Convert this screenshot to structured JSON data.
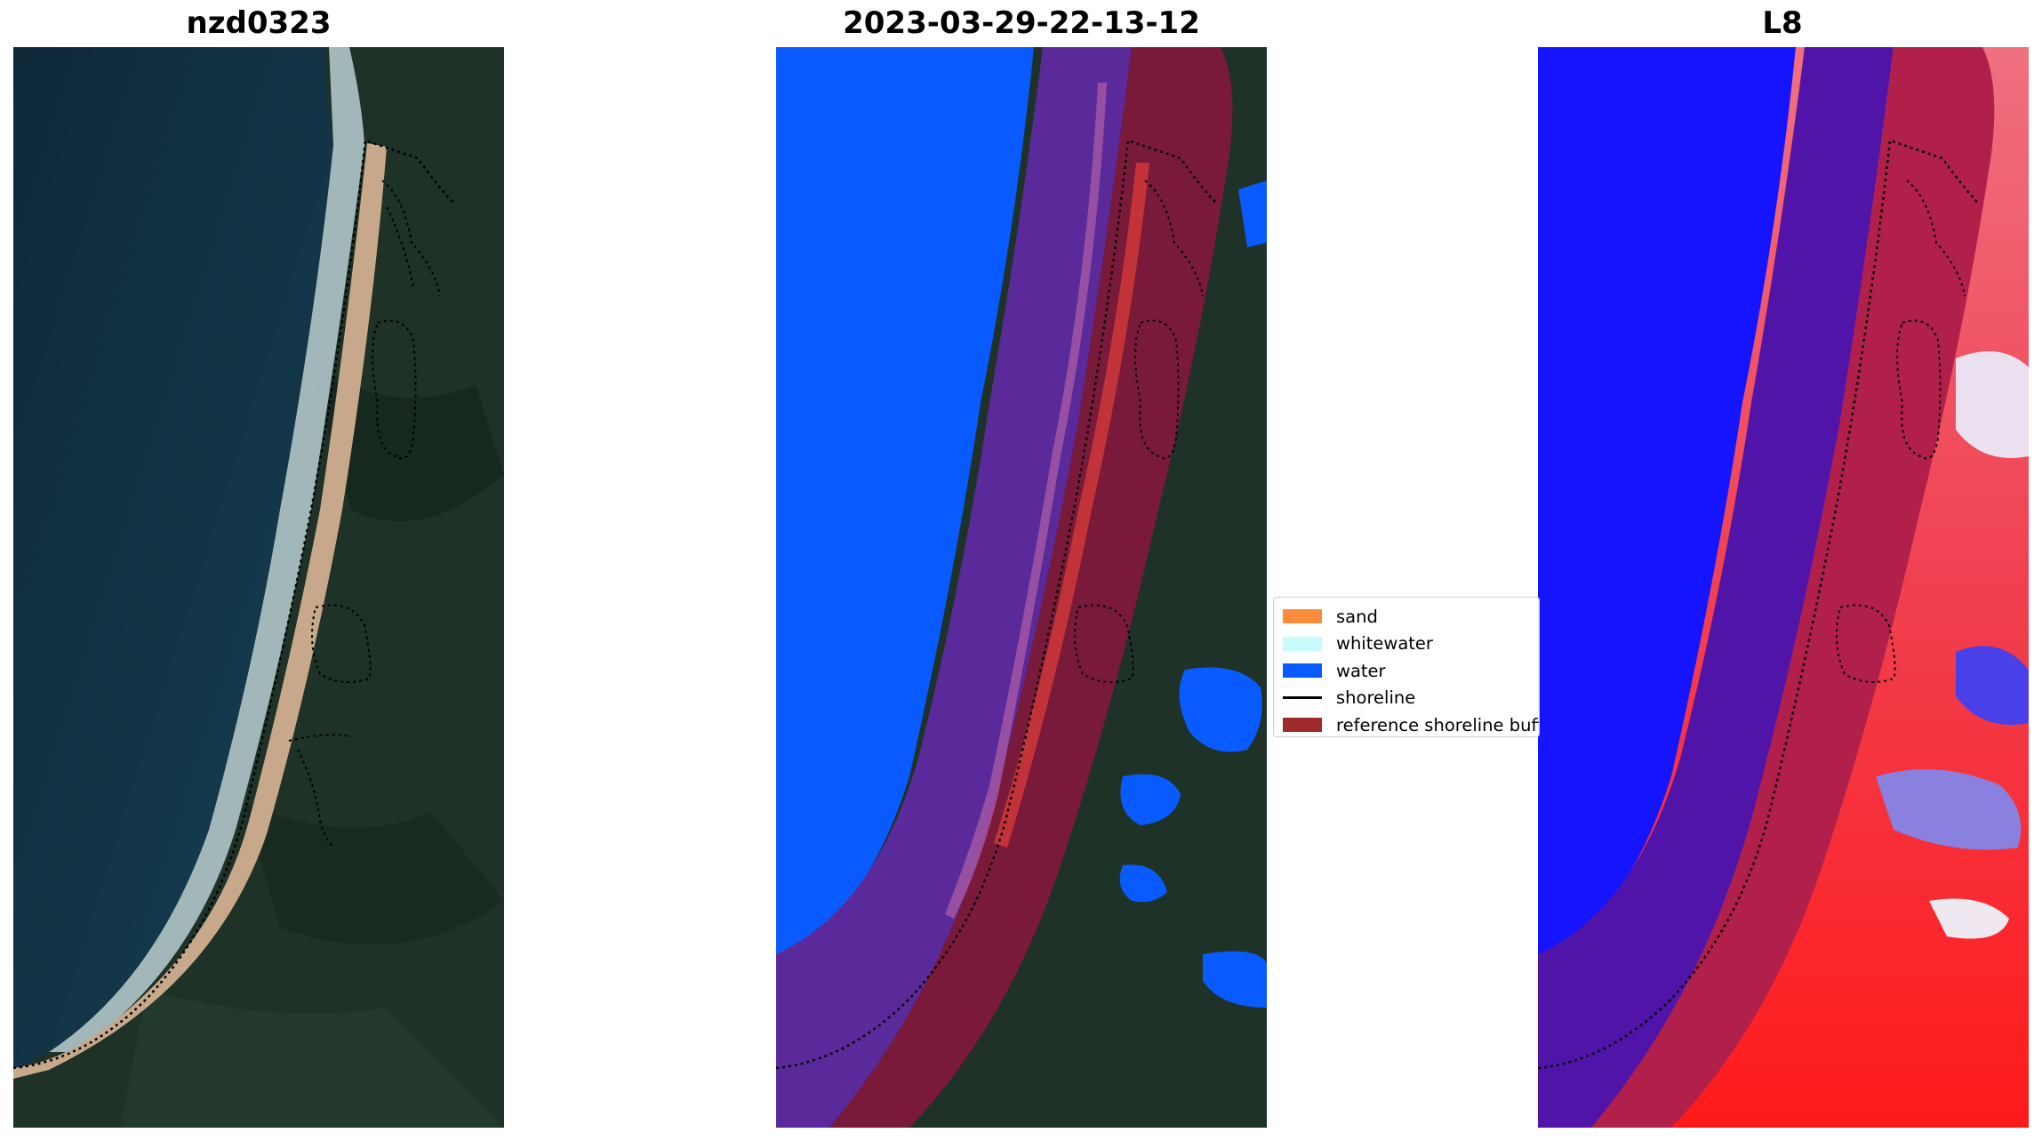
{
  "panels": [
    {
      "title": "nzd0323"
    },
    {
      "title": "2023-03-29-22-13-12"
    },
    {
      "title": "L8"
    }
  ],
  "legend": {
    "items": [
      {
        "label": "sand",
        "color": "#fb8c3c",
        "kind": "patch"
      },
      {
        "label": "whitewater",
        "color": "#c8fbfb",
        "kind": "patch"
      },
      {
        "label": "water",
        "color": "#0a5bff",
        "kind": "patch"
      },
      {
        "label": "shoreline",
        "color": "#000000",
        "kind": "line"
      },
      {
        "label": "reference shoreline buffer",
        "color": "#9e2a2a",
        "kind": "patch"
      }
    ]
  },
  "colors": {
    "ocean": "#0f2e40",
    "sand_beach": "#c9a98a",
    "surf": "#d8e8ec",
    "forest": "#1c3026",
    "water_class": "#0a5bff",
    "buffer_overlay": "#7a1a3a",
    "index_water": "#1414ff",
    "index_land": "#ff1a1a"
  }
}
